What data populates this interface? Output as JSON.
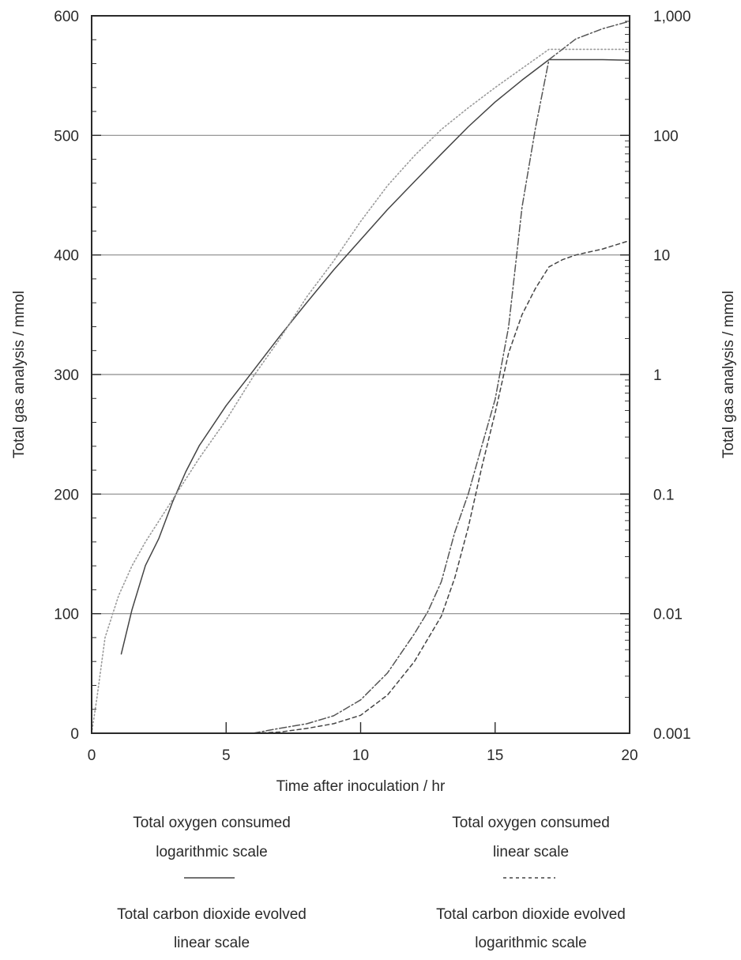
{
  "chart_data": {
    "type": "line",
    "title": "",
    "xlabel": "Time after inoculation / hr",
    "ylabel_left": "Total gas analysis / mmol",
    "ylabel_right": "Total gas analysis / mmol",
    "xlim": [
      0,
      20
    ],
    "ylim_left": [
      0,
      600
    ],
    "ylim_right": [
      0.001,
      1000
    ],
    "right_axis_scale": "log",
    "grid": "horizontal",
    "x_ticks": [
      "0",
      "5",
      "10",
      "15",
      "20"
    ],
    "y_ticks_left": [
      "0",
      "100",
      "200",
      "300",
      "400",
      "500",
      "600"
    ],
    "y_ticks_right": [
      "0.001",
      "0.01",
      "0.1",
      "1",
      "10",
      "100",
      "1,000"
    ],
    "legend_placement": "bottom",
    "series": [
      {
        "name": "Total oxygen consumed logarithmic scale",
        "axis": "right",
        "style": "solid",
        "color": "#444444",
        "x": [
          1.1,
          1.5,
          2.0,
          2.5,
          3.0,
          3.5,
          4.0,
          5.0,
          6.0,
          7.0,
          8.0,
          9.0,
          10.0,
          11.0,
          12.0,
          13.0,
          14.0,
          15.0,
          16.0,
          17.0,
          18.0,
          19.0,
          20.0
        ],
        "y": [
          0.0046,
          0.0108,
          0.0253,
          0.0426,
          0.0849,
          0.154,
          0.254,
          0.55,
          1.07,
          2.1,
          4.0,
          7.5,
          13.4,
          24,
          41,
          70,
          118,
          190,
          290,
          430,
          430,
          430,
          425
        ]
      },
      {
        "name": "Total oxygen consumed linear scale",
        "axis": "left",
        "style": "dashed",
        "color": "#444444",
        "x": [
          5.0,
          6.0,
          7.0,
          8.0,
          9.0,
          10.0,
          11.0,
          12.0,
          13.0,
          13.5,
          14.0,
          14.5,
          15.0,
          15.5,
          16.0,
          16.5,
          17.0,
          17.5,
          18.0,
          19.0,
          20.0
        ],
        "y": [
          0,
          0,
          1,
          4,
          8,
          15,
          32,
          60,
          98,
          130,
          172,
          222,
          268,
          318,
          350,
          372,
          390,
          396,
          400,
          405,
          412
        ]
      },
      {
        "name": "Total carbon dioxide evolved linear scale",
        "axis": "left",
        "style": "dotted",
        "color": "#9a9a9a",
        "x": [
          0.0,
          0.2,
          0.5,
          1.0,
          1.5,
          2.0,
          3.0,
          4.0,
          5.0,
          6.0,
          7.0,
          8.0,
          9.0,
          10.0,
          11.0,
          12.0,
          13.0,
          14.0,
          15.0,
          16.0,
          17.0,
          18.0,
          19.0,
          20.0
        ],
        "y": [
          0,
          30,
          80,
          115,
          140,
          160,
          195,
          230,
          262,
          298,
          330,
          365,
          395,
          428,
          458,
          483,
          505,
          523,
          540,
          556,
          572,
          572,
          572,
          572
        ]
      },
      {
        "name": "Total carbon dioxide evolved logarithmic scale",
        "axis": "right",
        "style": "dashdot",
        "color": "#555555",
        "x": [
          5.0,
          6.0,
          7.0,
          8.0,
          9.0,
          10.0,
          11.0,
          12.0,
          12.5,
          13.0,
          13.5,
          14.0,
          14.5,
          15.0,
          15.5,
          16.0,
          16.5,
          17.0,
          18.0,
          19.0,
          20.0
        ],
        "y": [
          0.001,
          0.001,
          0.0011,
          0.0012,
          0.0014,
          0.0019,
          0.0032,
          0.0068,
          0.0104,
          0.0185,
          0.048,
          0.1,
          0.25,
          0.62,
          2.5,
          25,
          115,
          430,
          640,
          780,
          900
        ]
      }
    ]
  },
  "legend": {
    "left_col": {
      "entry1_line1": "Total oxygen consumed",
      "entry1_line2": "logarithmic scale",
      "entry2_line1": "Total carbon dioxide evolved",
      "entry2_line2": "linear scale"
    },
    "right_col": {
      "entry1_line1": "Total oxygen consumed",
      "entry1_line2": "linear scale",
      "entry2_line1": "Total carbon dioxide evolved",
      "entry2_line2": "logarithmic scale"
    }
  }
}
